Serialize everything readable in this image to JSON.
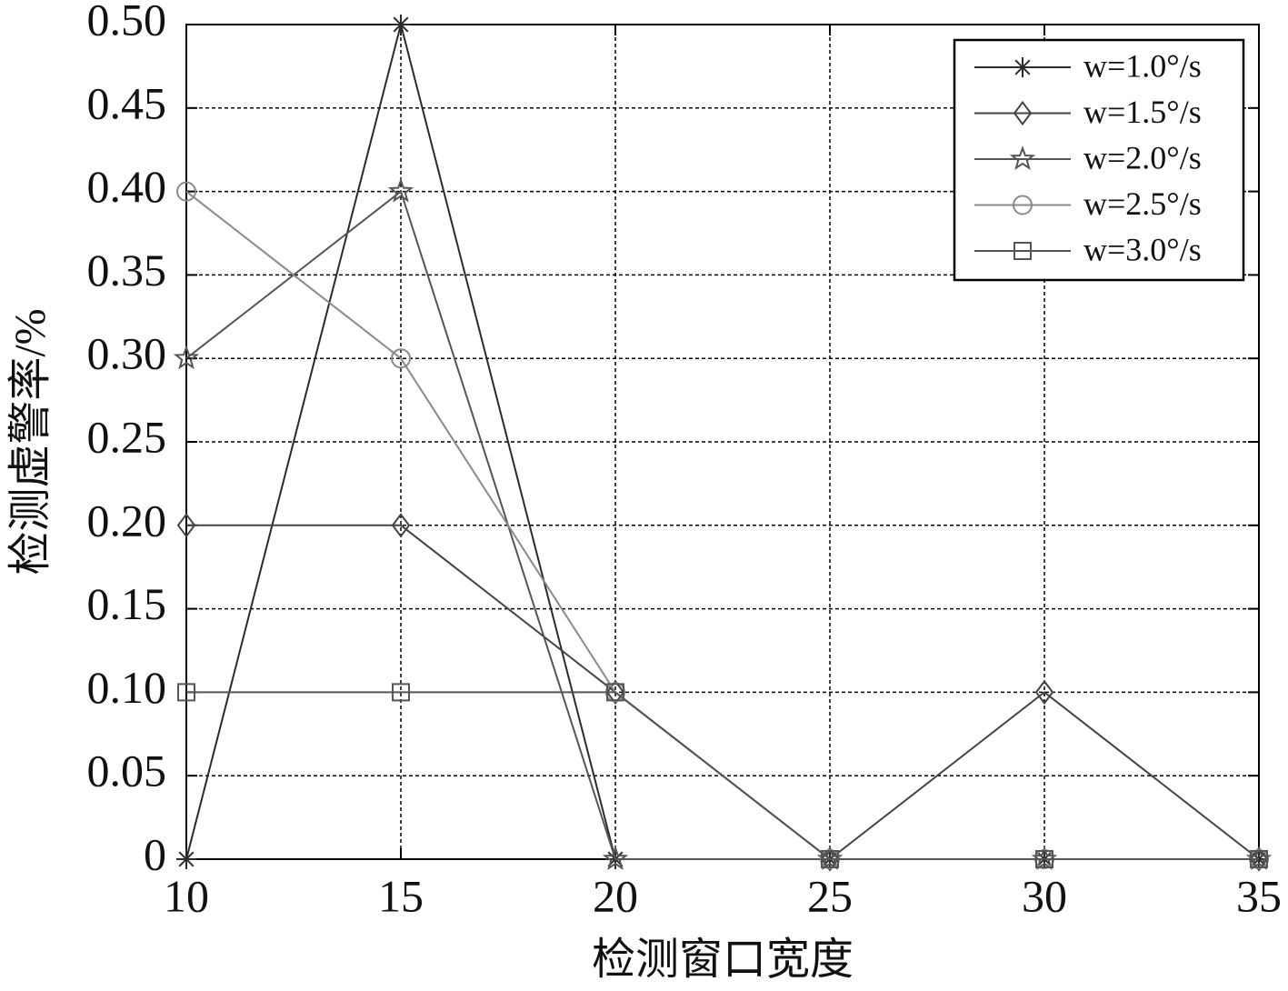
{
  "chart_data": {
    "type": "line",
    "x_label": "检测窗口宽度",
    "y_label": "检测虚警率/%",
    "x": [
      10,
      15,
      20,
      25,
      30,
      35
    ],
    "xlim": [
      10,
      35
    ],
    "xticks": [
      10,
      15,
      20,
      25,
      30,
      35
    ],
    "ylim": [
      0,
      0.5
    ],
    "yticks": [
      0,
      0.05,
      {
        "value": 0.1,
        "label": "0.10"
      },
      0.15,
      {
        "value": 0.2,
        "label": "0.20"
      },
      0.25,
      {
        "value": 0.3,
        "label": "0.30"
      },
      0.35,
      {
        "value": 0.4,
        "label": "0.40"
      },
      0.45,
      {
        "value": 0.5,
        "label": "0.50"
      }
    ],
    "grid": true,
    "legend": "upper right",
    "series": [
      {
        "name": "w=1.0°/s",
        "color": "#2b2b2b",
        "marker": "asterisk",
        "values": [
          0,
          0.5,
          0,
          0,
          0,
          0
        ]
      },
      {
        "name": "w=1.5°/s",
        "color": "#444444",
        "marker": "diamond",
        "values": [
          0.2,
          0.2,
          0.1,
          0,
          0.1,
          0
        ]
      },
      {
        "name": "w=2.0°/s",
        "color": "#555555",
        "marker": "star",
        "values": [
          0.3,
          0.4,
          0,
          0,
          0,
          0
        ]
      },
      {
        "name": "w=2.5°/s",
        "color": "#8a8a8a",
        "marker": "circle",
        "values": [
          0.4,
          0.3,
          0.1,
          0,
          0,
          0
        ]
      },
      {
        "name": "w=3.0°/s",
        "color": "#555555",
        "marker": "square",
        "values": [
          0.1,
          0.1,
          0.1,
          0,
          0,
          0
        ]
      }
    ]
  }
}
